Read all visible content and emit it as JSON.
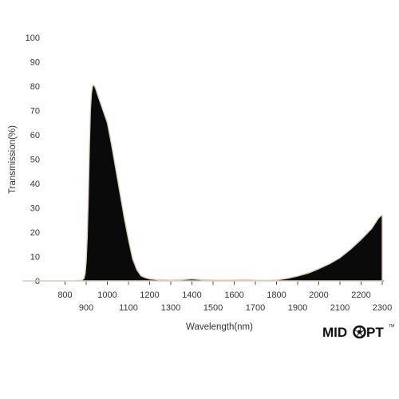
{
  "chart_data": {
    "type": "area",
    "title": "",
    "xlabel": "Wavelength(nm)",
    "ylabel": "Transmission(%)",
    "xlim": [
      750,
      2300
    ],
    "ylim": [
      0,
      100
    ],
    "x_ticks_lower": [
      800,
      1000,
      1200,
      1400,
      1600,
      1800,
      2000,
      2200
    ],
    "x_ticks_upper": [
      900,
      1100,
      1300,
      1500,
      1700,
      1900,
      2100,
      2300
    ],
    "x_tick_labels_lower": [
      "800",
      "1000",
      "1200",
      "1400",
      "1600",
      "1800",
      "2000",
      "2200"
    ],
    "x_tick_labels_upper": [
      "900",
      "1100",
      "1300",
      "1500",
      "1700",
      "1900",
      "2100",
      "2300"
    ],
    "y_ticks": [
      0,
      10,
      20,
      30,
      40,
      50,
      60,
      70,
      80,
      90,
      100
    ],
    "y_tick_labels": [
      "0",
      "10",
      "20",
      "30",
      "40",
      "50",
      "60",
      "70",
      "80",
      "90",
      "100"
    ],
    "grid": false,
    "fill_color": "#0a0a0a",
    "edge_color": "#d9cfb8",
    "series": [
      {
        "x": [
          750,
          850,
          880,
          890,
          895,
          900,
          905,
          910,
          915,
          920,
          925,
          930,
          935,
          940,
          945,
          950,
          960,
          980,
          1000,
          1020,
          1040,
          1060,
          1080,
          1100,
          1120,
          1140,
          1160,
          1180,
          1200,
          1240,
          1300,
          1350,
          1400,
          1450,
          1500,
          1600,
          1650,
          1700,
          1750,
          1800,
          1850,
          1900,
          1950,
          2000,
          2050,
          2100,
          2150,
          2200,
          2250,
          2280,
          2290,
          2300
        ],
        "y": [
          0,
          0,
          0.3,
          1,
          3,
          8,
          18,
          35,
          55,
          70,
          77,
          80,
          80.5,
          80,
          79,
          77.5,
          75,
          70,
          65,
          56,
          46,
          36,
          26,
          17,
          9,
          4.5,
          2,
          1.3,
          0.8,
          0.5,
          0.3,
          0.5,
          0.8,
          0.5,
          0.3,
          0.3,
          0.5,
          0.3,
          0.2,
          0.4,
          1,
          2,
          3.2,
          5,
          7,
          9.5,
          13,
          17,
          21.5,
          25.5,
          26.5,
          27
        ]
      }
    ]
  },
  "logo": {
    "text": "MIDOPT",
    "part1": "MID",
    "part2": "PT",
    "tm": "TM"
  }
}
